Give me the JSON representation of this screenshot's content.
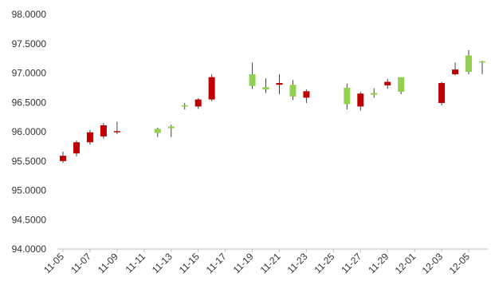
{
  "chart_data": {
    "type": "candlestick",
    "title": "",
    "xlabel": "",
    "ylabel": "",
    "ylim": [
      94.0,
      98.0
    ],
    "y_ticks": [
      "94.0000",
      "94.5000",
      "95.0000",
      "95.5000",
      "96.0000",
      "96.5000",
      "97.0000",
      "97.5000",
      "98.0000"
    ],
    "x_range": [
      "11-05",
      "12-06"
    ],
    "x_ticks": [
      "11-05",
      "11-07",
      "11-09",
      "11-11",
      "11-13",
      "11-15",
      "11-17",
      "11-19",
      "11-21",
      "11-23",
      "11-25",
      "11-27",
      "11-29",
      "12-01",
      "12-03",
      "12-05"
    ],
    "grid": false,
    "legend": "none",
    "colors": {
      "up": "#92d050",
      "down": "#c00000",
      "wick": "#404040",
      "axis": "#bfbfbf"
    },
    "candles": [
      {
        "date": "11-05",
        "open": 95.59,
        "high": 95.66,
        "low": 95.47,
        "close": 95.5
      },
      {
        "date": "11-06",
        "open": 95.82,
        "high": 95.85,
        "low": 95.58,
        "close": 95.63
      },
      {
        "date": "11-07",
        "open": 95.99,
        "high": 96.03,
        "low": 95.78,
        "close": 95.82
      },
      {
        "date": "11-08",
        "open": 96.11,
        "high": 96.15,
        "low": 95.88,
        "close": 95.92
      },
      {
        "date": "11-09",
        "open": 96.01,
        "high": 96.17,
        "low": 95.96,
        "close": 95.99
      },
      {
        "date": "11-12",
        "open": 95.98,
        "high": 96.07,
        "low": 95.91,
        "close": 96.05
      },
      {
        "date": "11-13",
        "open": 96.06,
        "high": 96.12,
        "low": 95.91,
        "close": 96.09
      },
      {
        "date": "11-14",
        "open": 96.43,
        "high": 96.49,
        "low": 96.38,
        "close": 96.45
      },
      {
        "date": "11-15",
        "open": 96.55,
        "high": 96.57,
        "low": 96.39,
        "close": 96.43
      },
      {
        "date": "11-16",
        "open": 96.93,
        "high": 96.98,
        "low": 96.52,
        "close": 96.55
      },
      {
        "date": "11-19",
        "open": 96.78,
        "high": 97.18,
        "low": 96.73,
        "close": 96.98
      },
      {
        "date": "11-20",
        "open": 96.72,
        "high": 96.91,
        "low": 96.66,
        "close": 96.76
      },
      {
        "date": "11-21",
        "open": 96.83,
        "high": 96.98,
        "low": 96.64,
        "close": 96.8
      },
      {
        "date": "11-22",
        "open": 96.6,
        "high": 96.88,
        "low": 96.54,
        "close": 96.8
      },
      {
        "date": "11-23",
        "open": 96.69,
        "high": 96.72,
        "low": 96.49,
        "close": 96.58
      },
      {
        "date": "11-26",
        "open": 96.47,
        "high": 96.82,
        "low": 96.38,
        "close": 96.75
      },
      {
        "date": "11-27",
        "open": 96.65,
        "high": 96.68,
        "low": 96.36,
        "close": 96.43
      },
      {
        "date": "11-28",
        "open": 96.63,
        "high": 96.74,
        "low": 96.58,
        "close": 96.66
      },
      {
        "date": "11-29",
        "open": 96.85,
        "high": 96.9,
        "low": 96.73,
        "close": 96.79
      },
      {
        "date": "11-30",
        "open": 96.68,
        "high": 96.93,
        "low": 96.64,
        "close": 96.93
      },
      {
        "date": "12-03",
        "open": 96.83,
        "high": 96.85,
        "low": 96.45,
        "close": 96.49
      },
      {
        "date": "12-04",
        "open": 97.06,
        "high": 97.18,
        "low": 96.96,
        "close": 96.98
      },
      {
        "date": "12-05",
        "open": 97.02,
        "high": 97.39,
        "low": 96.98,
        "close": 97.3
      },
      {
        "date": "12-06",
        "open": 97.18,
        "high": 97.21,
        "low": 96.98,
        "close": 97.2
      }
    ]
  }
}
